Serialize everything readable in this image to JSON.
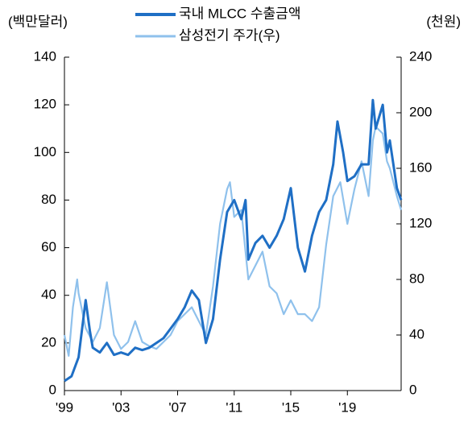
{
  "chart_data": {
    "type": "line",
    "ylabel": "(백만달러)",
    "y2label": "(천원)",
    "xlim": [
      1999,
      2022.8
    ],
    "xticks": [
      {
        "value": 1999,
        "label": "'99"
      },
      {
        "value": 2003,
        "label": "'03"
      },
      {
        "value": 2007,
        "label": "'07"
      },
      {
        "value": 2011,
        "label": "'11"
      },
      {
        "value": 2015,
        "label": "'15"
      },
      {
        "value": 2019,
        "label": "'19"
      }
    ],
    "ylim": [
      0,
      140
    ],
    "yticks": [
      0,
      20,
      40,
      60,
      80,
      100,
      120,
      140
    ],
    "y2lim": [
      0,
      240
    ],
    "y2ticks": [
      0,
      40,
      80,
      120,
      160,
      200,
      240
    ],
    "series": [
      {
        "name": "국내 MLCC 수출금액",
        "color": "#1f6fc5",
        "x": [
          1999,
          1999.5,
          2000,
          2000.5,
          2000.8,
          2001,
          2001.5,
          2002,
          2002.5,
          2003,
          2003.5,
          2004,
          2004.5,
          2005,
          2005.5,
          2006,
          2006.5,
          2007,
          2007.5,
          2008,
          2008.5,
          2009,
          2009.5,
          2010,
          2010.5,
          2011,
          2011.5,
          2011.8,
          2012,
          2012.5,
          2013,
          2013.5,
          2014,
          2014.5,
          2015,
          2015.5,
          2016,
          2016.5,
          2017,
          2017.5,
          2018,
          2018.3,
          2018.7,
          2019,
          2019.5,
          2020,
          2020.5,
          2020.8,
          2021,
          2021.5,
          2021.8,
          2022,
          2022.5,
          2022.8
        ],
        "values": [
          4,
          6,
          14,
          38,
          25,
          18,
          16,
          20,
          15,
          16,
          15,
          18,
          17,
          18,
          20,
          22,
          26,
          30,
          35,
          42,
          38,
          20,
          30,
          55,
          75,
          80,
          72,
          80,
          55,
          62,
          65,
          60,
          65,
          72,
          85,
          60,
          50,
          65,
          75,
          80,
          95,
          113,
          100,
          88,
          90,
          95,
          95,
          122,
          110,
          120,
          100,
          105,
          85,
          80
        ]
      },
      {
        "name": "삼성전기 주가(우)",
        "color": "#8fc1ec",
        "axis": "y2",
        "x": [
          1999,
          1999.3,
          1999.6,
          1999.9,
          2000,
          2000.5,
          2001,
          2001.5,
          2002,
          2002.5,
          2003,
          2003.5,
          2004,
          2004.5,
          2005,
          2005.5,
          2006,
          2006.5,
          2007,
          2007.5,
          2008,
          2008.5,
          2009,
          2009.5,
          2010,
          2010.5,
          2010.7,
          2011,
          2011.5,
          2012,
          2012.5,
          2013,
          2013.5,
          2014,
          2014.5,
          2015,
          2015.5,
          2016,
          2016.5,
          2017,
          2017.5,
          2018,
          2018.5,
          2019,
          2019.5,
          2020,
          2020.5,
          2020.8,
          2021,
          2021.5,
          2021.8,
          2022,
          2022.5,
          2022.8
        ],
        "values": [
          40,
          25,
          60,
          80,
          70,
          45,
          35,
          45,
          78,
          40,
          30,
          35,
          50,
          35,
          32,
          30,
          35,
          40,
          50,
          55,
          60,
          50,
          40,
          75,
          120,
          145,
          150,
          125,
          130,
          80,
          90,
          100,
          75,
          70,
          55,
          65,
          55,
          55,
          50,
          60,
          105,
          140,
          150,
          120,
          145,
          165,
          140,
          180,
          190,
          185,
          165,
          160,
          140,
          130
        ]
      }
    ]
  }
}
